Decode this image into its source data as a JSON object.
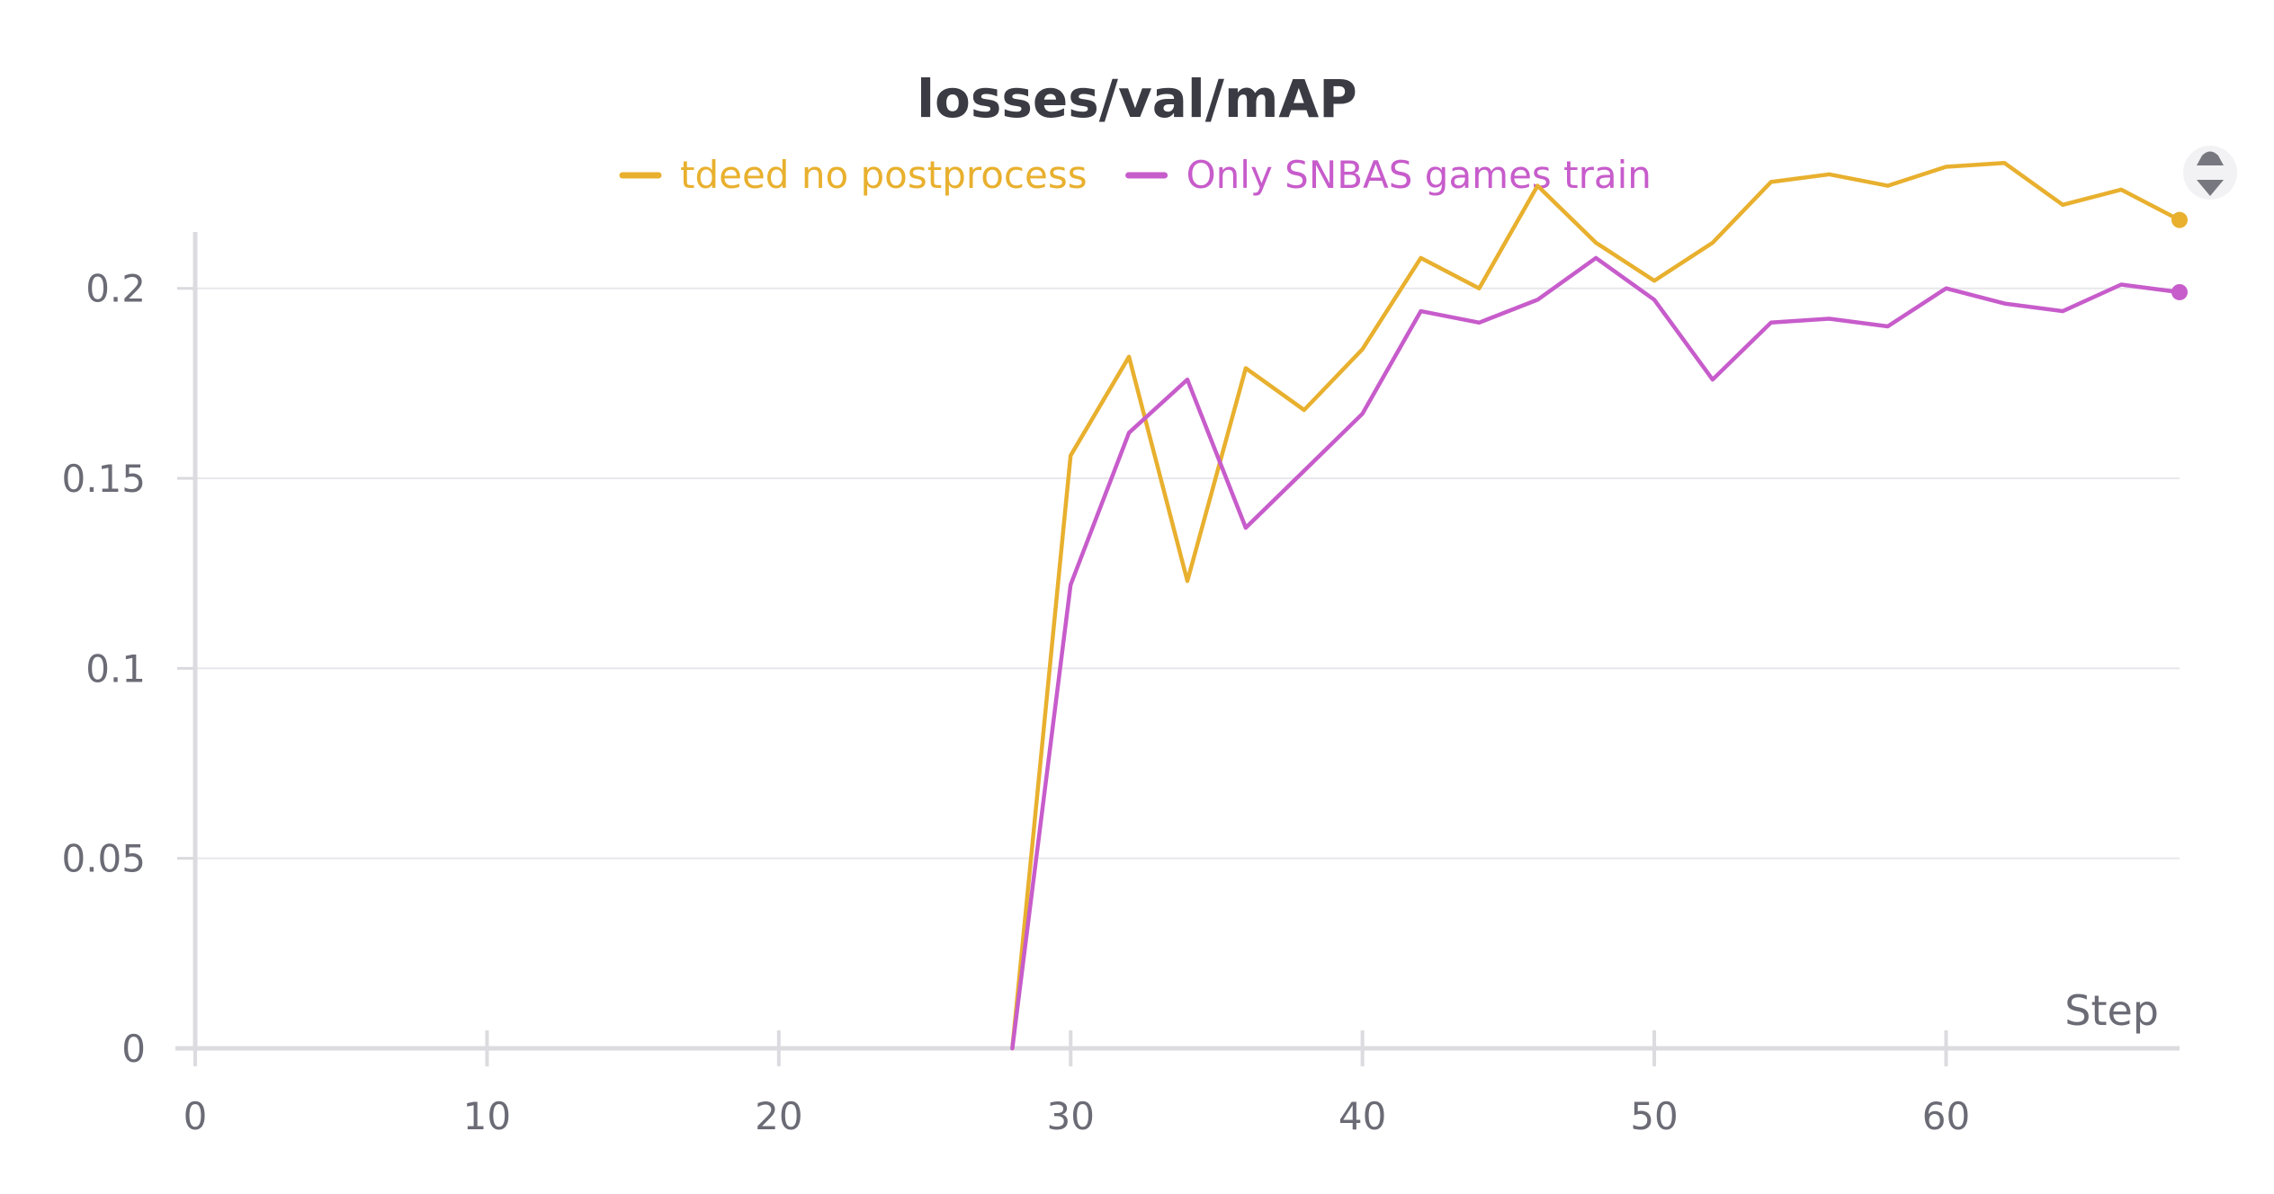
{
  "chart_data": {
    "type": "line",
    "title": "losses/val/mAP",
    "xlabel": "Step",
    "ylabel": "",
    "xlim": [
      0,
      68
    ],
    "ylim": [
      0,
      0.2333
    ],
    "x_ticks": [
      0,
      10,
      20,
      30,
      40,
      50,
      60
    ],
    "x_tick_labels": [
      "0",
      "10",
      "20",
      "30",
      "40",
      "50",
      "60"
    ],
    "y_ticks": [
      0,
      0.05,
      0.1,
      0.15,
      0.2
    ],
    "y_tick_labels": [
      "0",
      "0.05",
      "0.1",
      "0.15",
      "0.2"
    ],
    "grid": "horizontal",
    "legend_position": "top-center",
    "series": [
      {
        "name": "tdeed no postprocess",
        "color": "#e8b02e",
        "x": [
          28,
          30,
          32,
          34,
          36,
          38,
          40,
          42,
          44,
          46,
          48,
          50,
          52,
          54,
          56,
          58,
          60,
          62,
          64,
          66,
          68
        ],
        "y": [
          0.0,
          0.156,
          0.182,
          0.123,
          0.179,
          0.168,
          0.184,
          0.208,
          0.2,
          0.227,
          0.212,
          0.202,
          0.212,
          0.228,
          0.23,
          0.227,
          0.232,
          0.233,
          0.222,
          0.226,
          0.218
        ]
      },
      {
        "name": "Only SNBAS games train",
        "color": "#c75ccb",
        "x": [
          28,
          30,
          32,
          34,
          36,
          38,
          40,
          42,
          44,
          46,
          48,
          50,
          52,
          54,
          56,
          58,
          60,
          62,
          64,
          66,
          68
        ],
        "y": [
          0.0,
          0.122,
          0.162,
          0.176,
          0.137,
          0.152,
          0.167,
          0.194,
          0.191,
          0.197,
          0.208,
          0.197,
          0.176,
          0.191,
          0.192,
          0.19,
          0.2,
          0.196,
          0.194,
          0.201,
          0.199
        ]
      }
    ]
  },
  "controls": {
    "menu_icon": "pin-sort-icon"
  }
}
